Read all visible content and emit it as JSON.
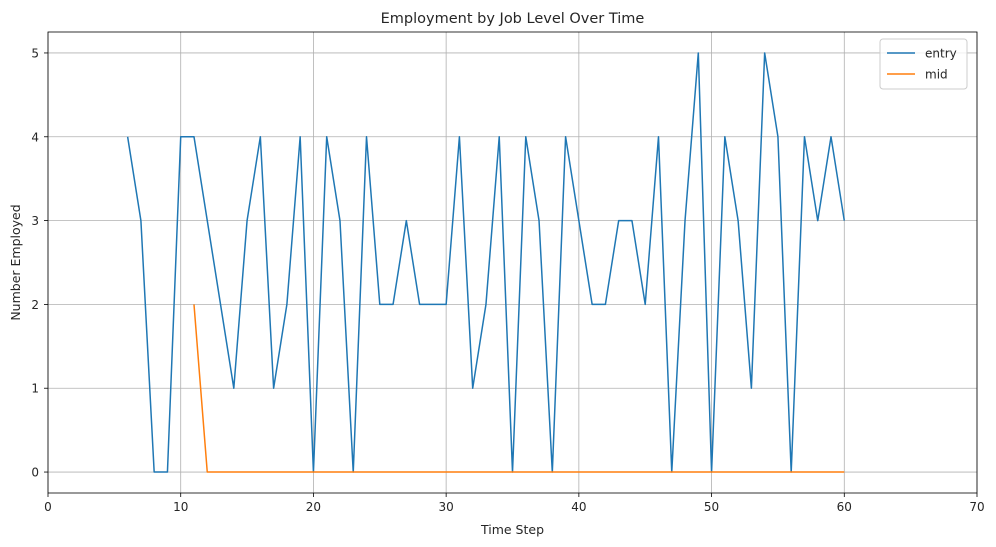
{
  "chart_data": {
    "type": "line",
    "title": "Employment by Job Level Over Time",
    "xlabel": "Time Step",
    "ylabel": "Number Employed",
    "xlim": [
      0,
      70
    ],
    "ylim": [
      -0.25,
      5.25
    ],
    "xticks": [
      0,
      10,
      20,
      30,
      40,
      50,
      60,
      70
    ],
    "yticks": [
      0,
      1,
      2,
      3,
      4,
      5
    ],
    "grid": true,
    "legend_position": "top-right",
    "series": [
      {
        "name": "entry",
        "color": "#1f77b4",
        "x": [
          6,
          7,
          8,
          9,
          10,
          11,
          14,
          15,
          16,
          17,
          18,
          19,
          20,
          21,
          22,
          23,
          24,
          25,
          26,
          27,
          28,
          29,
          30,
          31,
          32,
          33,
          34,
          35,
          36,
          37,
          38,
          39,
          41,
          42,
          43,
          44,
          45,
          46,
          47,
          48,
          49,
          50,
          51,
          52,
          53,
          54,
          55,
          56,
          57,
          58,
          59,
          60
        ],
        "y": [
          4,
          3,
          0,
          0,
          4,
          4,
          1,
          3,
          4,
          1,
          2,
          4,
          0,
          4,
          3,
          0,
          4,
          2,
          2,
          3,
          2,
          2,
          2,
          4,
          1,
          2,
          4,
          0,
          4,
          3,
          0,
          4,
          2,
          2,
          3,
          3,
          2,
          4,
          0,
          3,
          5,
          0,
          4,
          3,
          1,
          5,
          4,
          0,
          4,
          3,
          4,
          3
        ]
      },
      {
        "name": "mid",
        "color": "#ff7f0e",
        "x": [
          11,
          12,
          60
        ],
        "y": [
          2,
          0,
          0
        ]
      }
    ]
  }
}
